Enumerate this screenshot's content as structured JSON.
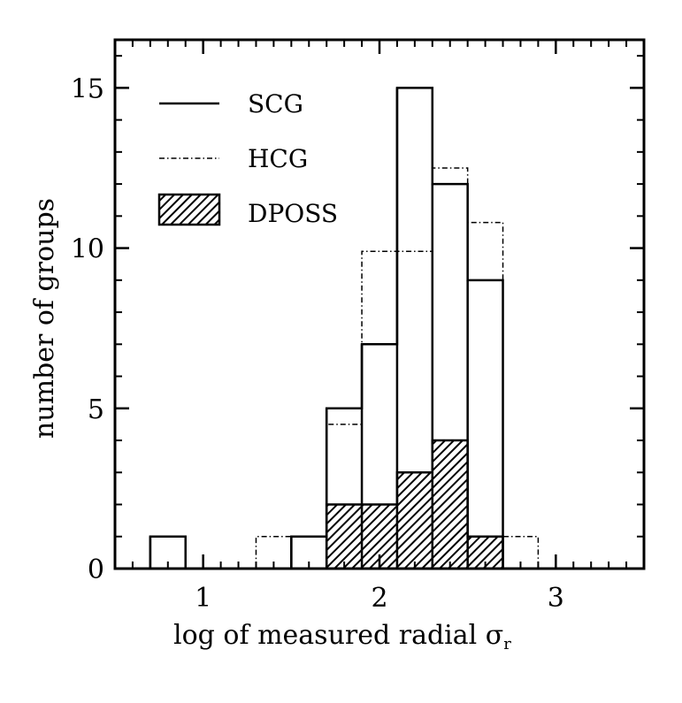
{
  "chart_data": {
    "type": "histogram",
    "xlabel": "log of measured radial σ",
    "xlabel_subscript": "r",
    "ylabel": "number of groups",
    "xlim": [
      0.5,
      3.5
    ],
    "ylim": [
      0,
      16.5
    ],
    "x_ticks": [
      "1",
      "2",
      "3"
    ],
    "y_ticks": [
      "0",
      "5",
      "10",
      "15"
    ],
    "bin_edges": [
      0.7,
      0.9,
      1.1,
      1.3,
      1.5,
      1.7,
      1.9,
      2.1,
      2.3,
      2.5,
      2.7,
      2.9,
      3.1
    ],
    "grid": false,
    "legend_position": "top-left",
    "series": [
      {
        "name": "SCG",
        "style": "solid",
        "values": [
          1,
          0,
          0,
          0,
          1,
          5,
          7,
          15,
          12,
          9,
          0,
          0
        ]
      },
      {
        "name": "HCG",
        "style": "dash-dot",
        "values": [
          0,
          0,
          0,
          1,
          1,
          4.5,
          9.9,
          9.9,
          12.5,
          10.8,
          1,
          0
        ]
      },
      {
        "name": "DPOSS",
        "style": "hatched",
        "values": [
          0,
          0,
          0,
          0,
          0,
          2,
          2,
          3,
          4,
          1,
          0,
          0
        ]
      }
    ]
  }
}
